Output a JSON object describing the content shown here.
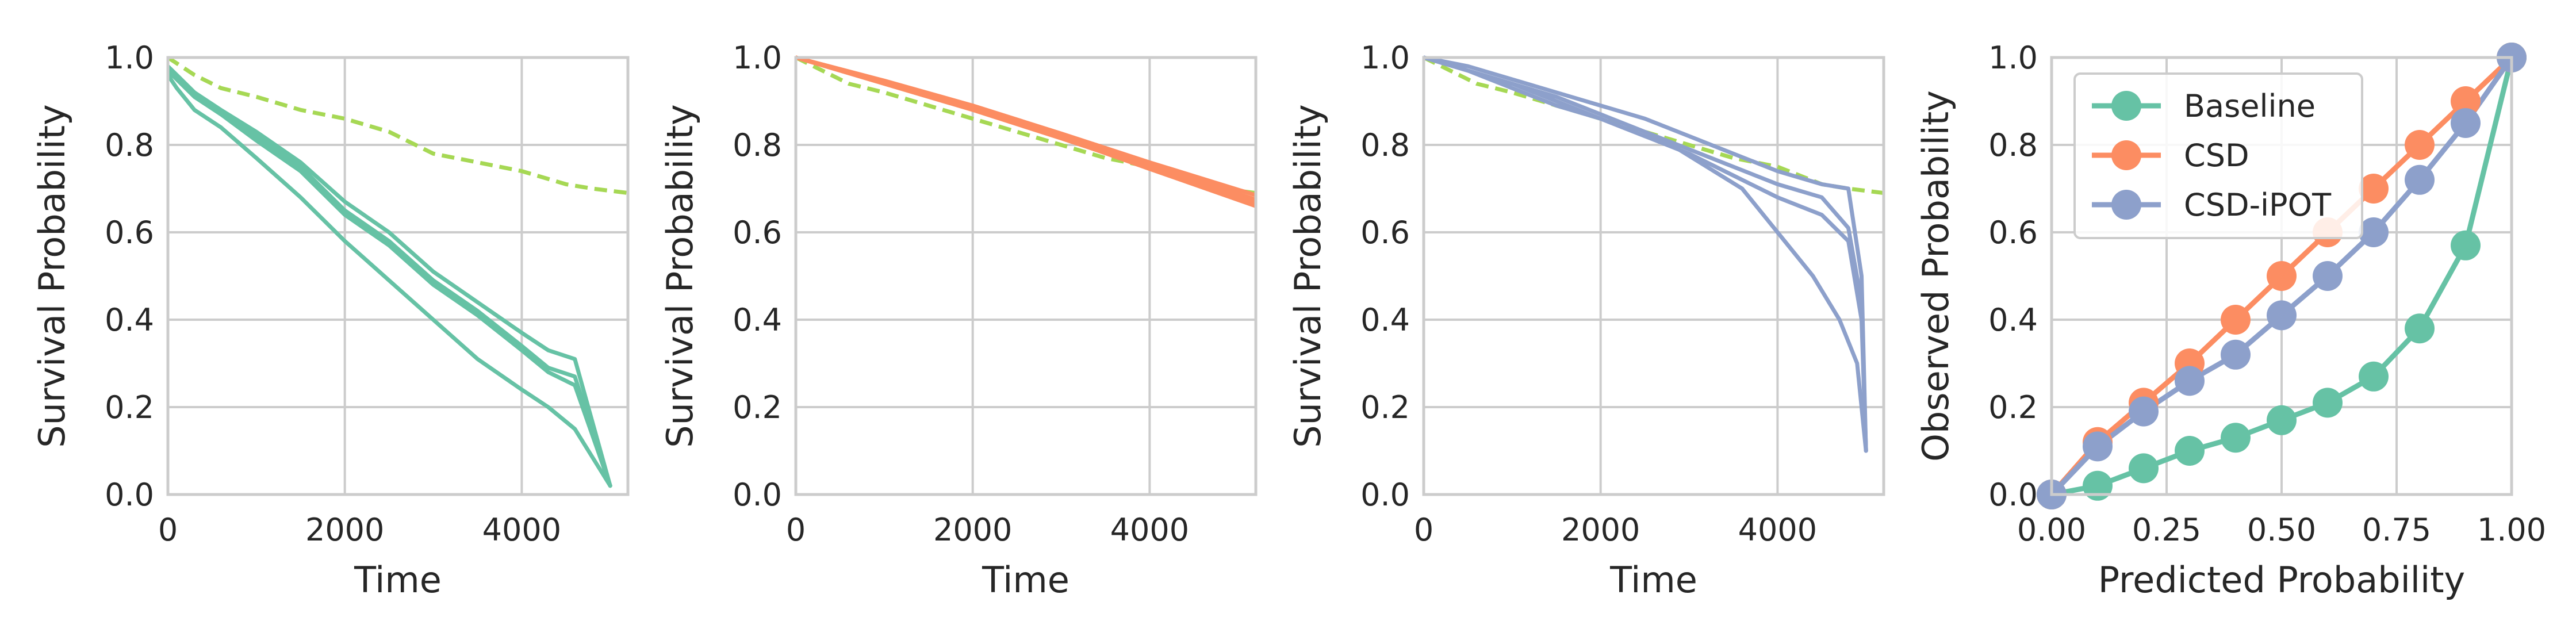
{
  "colors": {
    "baseline": "#66c2a5",
    "csd": "#fc8d62",
    "csd_ipot": "#8da0cb",
    "kaplan_meier": "#a6d854"
  },
  "chart_data": [
    {
      "type": "line",
      "xlabel": "Time",
      "ylabel": "Survival Probability",
      "xlim": [
        0,
        5200
      ],
      "ylim": [
        0,
        1
      ],
      "xticks": [
        "0",
        "2000",
        "4000"
      ],
      "yticks": [
        "0.0",
        "0.2",
        "0.4",
        "0.6",
        "0.8",
        "1.0"
      ],
      "grid": true,
      "series": [
        {
          "style": "dashed",
          "color": "#a6d854",
          "x": [
            0,
            300,
            600,
            1000,
            1500,
            2000,
            2500,
            3000,
            3500,
            4000,
            4500,
            4800,
            5200
          ],
          "y": [
            1.0,
            0.96,
            0.93,
            0.91,
            0.88,
            0.86,
            0.83,
            0.78,
            0.76,
            0.74,
            0.71,
            0.7,
            0.69
          ]
        },
        {
          "style": "solid",
          "color": "#66c2a5",
          "x": [
            0,
            100,
            300,
            600,
            1000,
            1500,
            2000,
            2500,
            3000,
            3500,
            4000,
            4300,
            4600,
            5000
          ],
          "y": [
            0.98,
            0.96,
            0.92,
            0.88,
            0.83,
            0.76,
            0.67,
            0.6,
            0.51,
            0.44,
            0.37,
            0.33,
            0.31,
            0.02
          ]
        },
        {
          "style": "solid",
          "color": "#66c2a5",
          "x": [
            0,
            100,
            300,
            600,
            1000,
            1500,
            2000,
            2500,
            3000,
            3500,
            4000,
            4300,
            4600,
            5000
          ],
          "y": [
            0.97,
            0.95,
            0.91,
            0.87,
            0.82,
            0.75,
            0.65,
            0.58,
            0.49,
            0.42,
            0.34,
            0.29,
            0.27,
            0.02
          ]
        },
        {
          "style": "solid",
          "color": "#66c2a5",
          "x": [
            0,
            100,
            300,
            600,
            1000,
            1500,
            2000,
            2500,
            3000,
            3500,
            4000,
            4300,
            4600,
            5000
          ],
          "y": [
            0.97,
            0.95,
            0.91,
            0.87,
            0.81,
            0.74,
            0.64,
            0.57,
            0.48,
            0.41,
            0.33,
            0.28,
            0.25,
            0.02
          ]
        },
        {
          "style": "solid",
          "color": "#66c2a5",
          "x": [
            0,
            100,
            300,
            600,
            1000,
            1500,
            2000,
            2500,
            3000,
            3500,
            4000,
            4300,
            4600,
            5000
          ],
          "y": [
            0.96,
            0.93,
            0.88,
            0.84,
            0.77,
            0.68,
            0.58,
            0.49,
            0.4,
            0.31,
            0.24,
            0.2,
            0.15,
            0.02
          ]
        }
      ]
    },
    {
      "type": "line",
      "xlabel": "Time",
      "ylabel": "Survival Probability",
      "xlim": [
        0,
        5200
      ],
      "ylim": [
        0,
        1
      ],
      "xticks": [
        "0",
        "2000",
        "4000"
      ],
      "yticks": [
        "0.0",
        "0.2",
        "0.4",
        "0.6",
        "0.8",
        "1.0"
      ],
      "grid": true,
      "series": [
        {
          "style": "dashed",
          "color": "#a6d854",
          "x": [
            0,
            300,
            600,
            1000,
            1500,
            2000,
            2500,
            3000,
            3500,
            4000,
            4500,
            4800,
            5200
          ],
          "y": [
            1.0,
            0.97,
            0.94,
            0.92,
            0.89,
            0.86,
            0.83,
            0.8,
            0.77,
            0.75,
            0.71,
            0.7,
            0.69
          ]
        },
        {
          "style": "solid",
          "color": "#fc8d62",
          "x": [
            0,
            1000,
            2000,
            3000,
            4000,
            5200
          ],
          "y": [
            1.0,
            0.945,
            0.885,
            0.82,
            0.755,
            0.675
          ]
        },
        {
          "style": "solid",
          "color": "#fc8d62",
          "x": [
            0,
            1000,
            2000,
            3000,
            4000,
            5200
          ],
          "y": [
            1.0,
            0.94,
            0.88,
            0.815,
            0.748,
            0.668
          ]
        },
        {
          "style": "solid",
          "color": "#fc8d62",
          "x": [
            0,
            1000,
            2000,
            3000,
            4000,
            5200
          ],
          "y": [
            1.0,
            0.947,
            0.89,
            0.826,
            0.76,
            0.685
          ]
        },
        {
          "style": "solid",
          "color": "#fc8d62",
          "x": [
            0,
            1000,
            2000,
            3000,
            4000,
            5200
          ],
          "y": [
            1.0,
            0.942,
            0.882,
            0.817,
            0.745,
            0.66
          ]
        }
      ]
    },
    {
      "type": "line",
      "xlabel": "Time",
      "ylabel": "Survival Probability",
      "xlim": [
        0,
        5200
      ],
      "ylim": [
        0,
        1
      ],
      "xticks": [
        "0",
        "2000",
        "4000"
      ],
      "yticks": [
        "0.0",
        "0.2",
        "0.4",
        "0.6",
        "0.8",
        "1.0"
      ],
      "grid": true,
      "series": [
        {
          "style": "dashed",
          "color": "#a6d854",
          "x": [
            0,
            300,
            600,
            1000,
            1500,
            2000,
            2500,
            3000,
            3500,
            4000,
            4500,
            4800,
            5200
          ],
          "y": [
            1.0,
            0.97,
            0.94,
            0.92,
            0.89,
            0.86,
            0.83,
            0.8,
            0.77,
            0.75,
            0.71,
            0.7,
            0.69
          ]
        },
        {
          "style": "solid",
          "color": "#8da0cb",
          "x": [
            0,
            500,
            1000,
            1500,
            2000,
            2500,
            3000,
            3500,
            4000,
            4500,
            4800,
            4950,
            5000
          ],
          "y": [
            1.0,
            0.98,
            0.95,
            0.92,
            0.89,
            0.86,
            0.82,
            0.78,
            0.74,
            0.71,
            0.7,
            0.5,
            0.1
          ]
        },
        {
          "style": "solid",
          "color": "#8da0cb",
          "x": [
            0,
            500,
            1000,
            1500,
            2000,
            2500,
            3000,
            3500,
            4000,
            4500,
            4800,
            4950,
            5000
          ],
          "y": [
            1.0,
            0.97,
            0.94,
            0.91,
            0.87,
            0.83,
            0.79,
            0.75,
            0.71,
            0.68,
            0.61,
            0.44,
            0.1
          ]
        },
        {
          "style": "solid",
          "color": "#8da0cb",
          "x": [
            0,
            500,
            1000,
            1500,
            2000,
            2500,
            3000,
            3500,
            4000,
            4500,
            4800,
            4950,
            5000
          ],
          "y": [
            1.0,
            0.97,
            0.94,
            0.9,
            0.86,
            0.82,
            0.78,
            0.73,
            0.68,
            0.64,
            0.58,
            0.4,
            0.1
          ]
        },
        {
          "style": "solid",
          "color": "#8da0cb",
          "x": [
            0,
            500,
            1000,
            1500,
            2000,
            2500,
            2800,
            3600,
            4000,
            4400,
            4700,
            4900,
            5000
          ],
          "y": [
            1.0,
            0.97,
            0.93,
            0.89,
            0.86,
            0.82,
            0.8,
            0.7,
            0.6,
            0.5,
            0.4,
            0.3,
            0.1
          ]
        }
      ]
    },
    {
      "type": "line",
      "xlabel": "Predicted Probability",
      "ylabel": "Observed Probability",
      "xlim": [
        0,
        1
      ],
      "ylim": [
        0,
        1
      ],
      "xticks": [
        "0.00",
        "0.25",
        "0.50",
        "0.75",
        "1.00"
      ],
      "yticks": [
        "0.0",
        "0.2",
        "0.4",
        "0.6",
        "0.8",
        "1.0"
      ],
      "grid": true,
      "legend": "top-left",
      "series": [
        {
          "name": "Baseline",
          "color": "#66c2a5",
          "markers": true,
          "x": [
            0.0,
            0.1,
            0.2,
            0.3,
            0.4,
            0.5,
            0.6,
            0.7,
            0.8,
            0.9,
            1.0
          ],
          "y": [
            0.0,
            0.02,
            0.06,
            0.1,
            0.13,
            0.17,
            0.21,
            0.27,
            0.38,
            0.57,
            1.0
          ]
        },
        {
          "name": "CSD",
          "color": "#fc8d62",
          "markers": true,
          "x": [
            0.0,
            0.1,
            0.2,
            0.3,
            0.4,
            0.5,
            0.6,
            0.7,
            0.8,
            0.9,
            1.0
          ],
          "y": [
            0.0,
            0.12,
            0.21,
            0.3,
            0.4,
            0.5,
            0.6,
            0.7,
            0.8,
            0.9,
            1.0
          ]
        },
        {
          "name": "CSD-iPOT",
          "color": "#8da0cb",
          "markers": true,
          "x": [
            0.0,
            0.1,
            0.2,
            0.3,
            0.4,
            0.5,
            0.6,
            0.7,
            0.8,
            0.9,
            1.0
          ],
          "y": [
            0.0,
            0.11,
            0.19,
            0.26,
            0.32,
            0.41,
            0.5,
            0.6,
            0.72,
            0.85,
            1.0
          ]
        }
      ]
    }
  ]
}
